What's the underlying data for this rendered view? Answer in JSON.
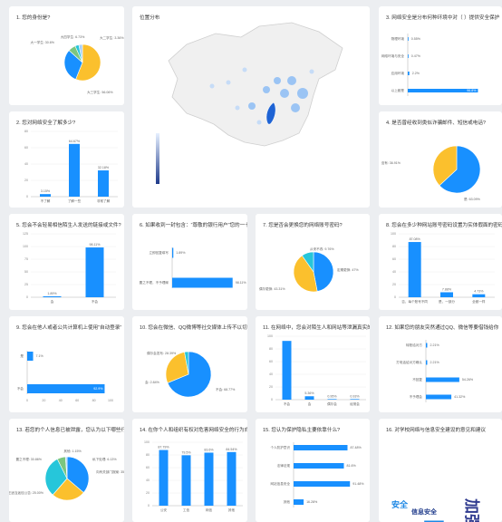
{
  "colors": {
    "blue": "#1890ff",
    "yellow": "#fbc02d",
    "teal": "#26c6da",
    "green": "#7bc67e",
    "light": "#a8d1ff"
  },
  "cards": [
    {
      "title": "1. 您的身份是?",
      "chart_data": {
        "type": "pie",
        "slices": [
          {
            "label": "大三学生: 56.06%",
            "value": 56.06
          },
          {
            "label": "大一学生: 30.6%",
            "value": 30.6
          },
          {
            "label": "大四学生: 6.73%",
            "value": 6.73
          },
          {
            "label": "大二学生: 3.36%",
            "value": 3.36
          },
          {
            "label": "",
            "value": 3.25
          }
        ]
      }
    },
    {
      "title": "位置分布",
      "map": {
        "legend_min": "",
        "legend_max": ""
      }
    },
    {
      "title": "3. 网络安全是分布何种环境中对（ ）提供安全保护",
      "chart_data": {
        "type": "hbar",
        "categories": [
          "物理环境",
          "网络环境与安全",
          "应用环境",
          "以上都是"
        ],
        "values": [
          0.55,
          0.47,
          2.2,
          96.8
        ],
        "labels": [
          "0.55%",
          "0.47%",
          "2.2%",
          "96.8%"
        ]
      }
    },
    {
      "title": "2. 您对网络安全了解多少?",
      "chart_data": {
        "type": "bar",
        "categories": [
          "不了解",
          "了解一些",
          "非常了解"
        ],
        "values": [
          3.15,
          64.67,
          32.18
        ],
        "labels": [
          "3.15%",
          "64.67%",
          "32.18%"
        ],
        "ylim": [
          0,
          80
        ],
        "ticks": [
          "80",
          "60",
          "40",
          "20",
          "0"
        ]
      }
    },
    {
      "title": "4. 是否曾经收到类似诈骗邮件、短信或电话?",
      "chart_data": {
        "type": "pie",
        "slices": [
          {
            "label": "是: 63.09%",
            "value": 63.09
          },
          {
            "label": "没有: 36.91%",
            "value": 36.91
          }
        ]
      }
    },
    {
      "title": "5. 您会不会轻易相信陌生人发送的链接或文件?",
      "chart_data": {
        "type": "bar",
        "categories": [
          "会",
          "不会"
        ],
        "values": [
          1.89,
          98.11
        ],
        "labels": [
          "1.89%",
          "98.11%"
        ],
        "ylim": [
          0,
          125
        ],
        "ticks": [
          "125",
          "100",
          "75",
          "50",
          "25",
          "0"
        ]
      }
    },
    {
      "title": "6. 如果收到一封包含：“尊敬的银行用户”您的一卡",
      "chart_data": {
        "type": "hbar",
        "categories": [
          "立即回复填写",
          "置之不理，不予理睬"
        ],
        "values": [
          1.89,
          98.11
        ],
        "labels": [
          "1.89%",
          "98.11%"
        ]
      }
    },
    {
      "title": "7. 您是否会更换您的网络账号密码?",
      "chart_data": {
        "type": "pie",
        "slices": [
          {
            "label": "定期更换: 47%",
            "value": 47
          },
          {
            "label": "偶尔更换: 43.31%",
            "value": 43.31
          },
          {
            "label": "从来不改: 9.76%",
            "value": 9.76
          }
        ]
      }
    },
    {
      "title": "8. 您会在多少种网站账号密码设置为实体假面的密码",
      "chart_data": {
        "type": "bar",
        "categories": [
          "否，每个账号不同",
          "是，一部分",
          "全都一样"
        ],
        "values": [
          87.08,
          7.88,
          4.73
        ],
        "labels": [
          "87.08%",
          "7.88%",
          "4.73%"
        ],
        "ylim": [
          0,
          100
        ],
        "ticks": [
          "100",
          "80",
          "60",
          "40",
          "20",
          "0"
        ]
      }
    },
    {
      "title": "9. 您会在他人或者公共计算机上使用“自动登录”",
      "chart_data": {
        "type": "hbar",
        "categories": [
          "是",
          "不会"
        ],
        "values": [
          7.1,
          92.9
        ],
        "labels": [
          "7.1%",
          "92.9%"
        ],
        "xticks": [
          "0",
          "20",
          "40",
          "60",
          "80",
          "100"
        ]
      }
    },
    {
      "title": "10. 您会在微信、QQ微博等社交媒体上传不以切的",
      "chart_data": {
        "type": "pie",
        "slices": [
          {
            "label": "不会: 68.77%",
            "value": 68.77
          },
          {
            "label": "偶尔会发布: 28.39%",
            "value": 28.39
          },
          {
            "label": "会: 2.84%",
            "value": 2.84
          }
        ]
      }
    },
    {
      "title": "11. 在网络中，您会对陌生人和网站等泄漏真实的",
      "chart_data": {
        "type": "bar",
        "categories": [
          "不会",
          "会",
          "偶尔会",
          "经常会"
        ],
        "values": [
          92.6,
          5.36,
          0.95,
          0.93
        ],
        "labels": [
          "",
          "5.36%",
          "0.95%",
          "0.93%"
        ],
        "ylim": [
          0,
          100
        ],
        "ticks": [
          "100",
          "80",
          "60",
          "40",
          "20",
          "0"
        ]
      }
    },
    {
      "title": "12. 如果您的朋友突然通过QQ、微信等要借钱给你",
      "chart_data": {
        "type": "hbar",
        "categories": [
          "转账给对方",
          "打电话给对方确认",
          "不回复",
          "不予理会"
        ],
        "values": [
          2.21,
          2.21,
          54.26,
          41.32
        ],
        "labels": [
          "2.21%",
          "2.21%",
          "54.26%",
          "41.32%"
        ]
      }
    },
    {
      "title": "13. 若您的个人信息已被泄露，您认为以下哪些行为",
      "chart_data": {
        "type": "pie",
        "slices": [
          {
            "label": "向有关部门报案: 35.86%",
            "value": 35.86
          },
          {
            "label": "在适当途径公告: 25.00%",
            "value": 25.0
          },
          {
            "label": "置之不理: 30.86%",
            "value": 30.86
          },
          {
            "label": "私下处理: 6.13%",
            "value": 6.13
          },
          {
            "label": "其他: 1.15%",
            "value": 1.15
          }
        ]
      }
    },
    {
      "title": "14. 在你个人和组织有权对危害网络安全的行为向...",
      "chart_data": {
        "type": "bar",
        "categories": [
          "公安",
          "工信",
          "网信",
          "其他"
        ],
        "values": [
          87.79,
          79.5,
          83.6,
          84.54
        ],
        "labels": [
          "87.79%",
          "79.5%",
          "83.6%",
          "84.54%"
        ],
        "ylim": [
          0,
          100
        ],
        "ticks": [
          "100",
          "80",
          "60",
          "40",
          "20",
          "0"
        ]
      }
    },
    {
      "title": "15. 您认为保护隐私主要依靠什么?",
      "chart_data": {
        "type": "hbar",
        "categories": [
          "个人防护意识",
          "法律法规",
          "网站信息安全",
          "其他"
        ],
        "values": [
          87.48,
          81.6,
          91.48,
          16.28
        ],
        "labels": [
          "87.48%",
          "81.6%",
          "91.48%",
          "16.28%"
        ]
      }
    },
    {
      "title": "16. 对学校网络与信息安全建设的意见和建议",
      "wordcloud": [
        {
          "text": "加强",
          "size": 17,
          "color": "#2f3a8f",
          "left": 117,
          "top": 88,
          "rot": 90
        },
        {
          "text": "安全",
          "size": 9,
          "color": "#1e88e5",
          "left": 14,
          "top": 88,
          "rot": 0
        },
        {
          "text": "信息安全",
          "size": 7,
          "color": "#1e3a8a",
          "left": 36,
          "top": 98,
          "rot": 0
        },
        {
          "text": "天",
          "size": 26,
          "color": "#1e88e5",
          "left": 48,
          "top": 104,
          "rot": 0
        }
      ]
    }
  ]
}
